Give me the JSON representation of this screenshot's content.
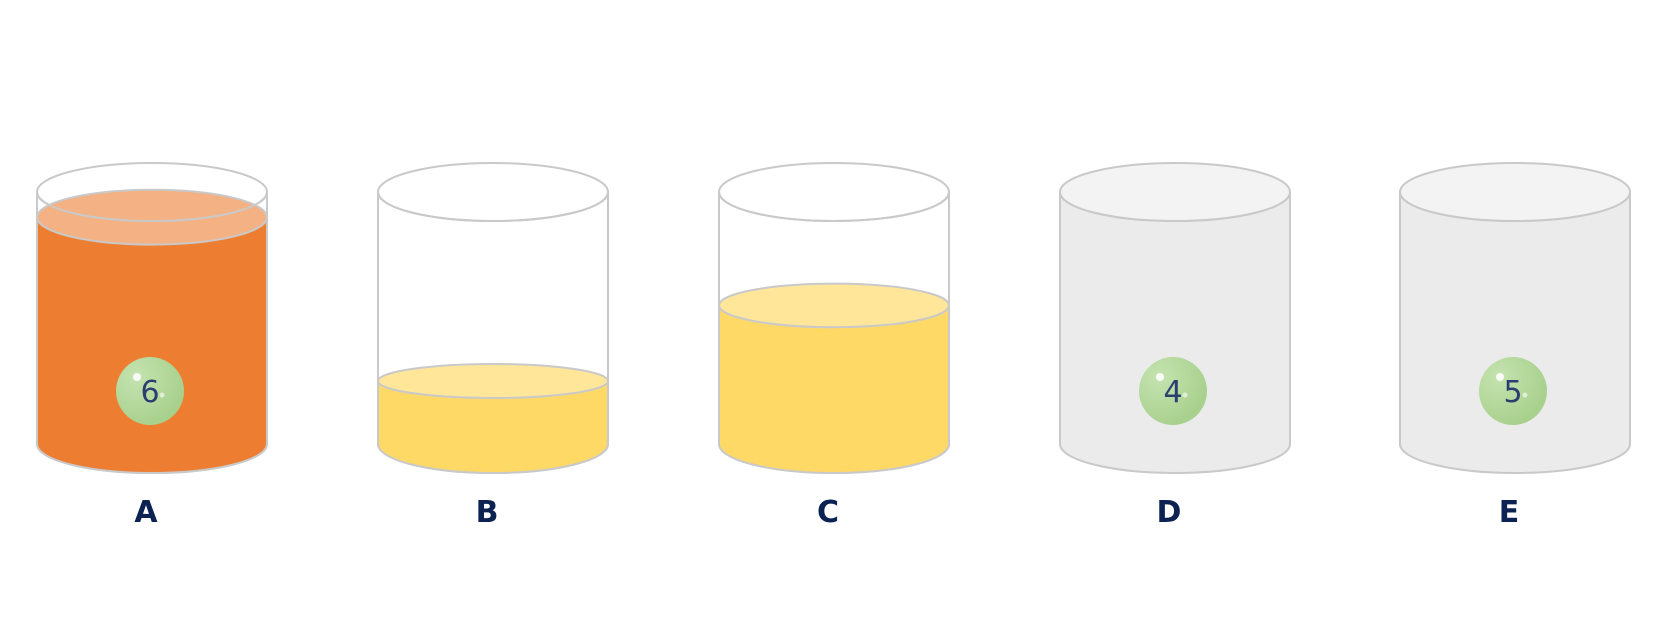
{
  "colors": {
    "background": "#ffffff",
    "outline": "#c9c9c9",
    "empty_gray_body": "#ebebeb",
    "empty_gray_top": "#f3f3f3",
    "orange_fill": "#ed7d31",
    "orange_top": "#f4b183",
    "yellow_fill": "#ffd966",
    "yellow_top": "#ffe699",
    "ball": "#a9d18e",
    "label_text": "#0b2252",
    "ball_text": "#2c3e70"
  },
  "containers": [
    {
      "id": "A",
      "label": "A",
      "body_style": "glass",
      "liquid": {
        "color": "orange",
        "level": 0.9
      },
      "ball": {
        "number": "6"
      }
    },
    {
      "id": "B",
      "label": "B",
      "body_style": "glass",
      "liquid": {
        "color": "yellow",
        "level": 0.25
      },
      "ball": null
    },
    {
      "id": "C",
      "label": "C",
      "body_style": "glass",
      "liquid": {
        "color": "yellow",
        "level": 0.55
      },
      "ball": null
    },
    {
      "id": "D",
      "label": "D",
      "body_style": "gray",
      "liquid": null,
      "ball": {
        "number": "4"
      }
    },
    {
      "id": "E",
      "label": "E",
      "body_style": "gray",
      "liquid": null,
      "ball": {
        "number": "5"
      }
    }
  ]
}
